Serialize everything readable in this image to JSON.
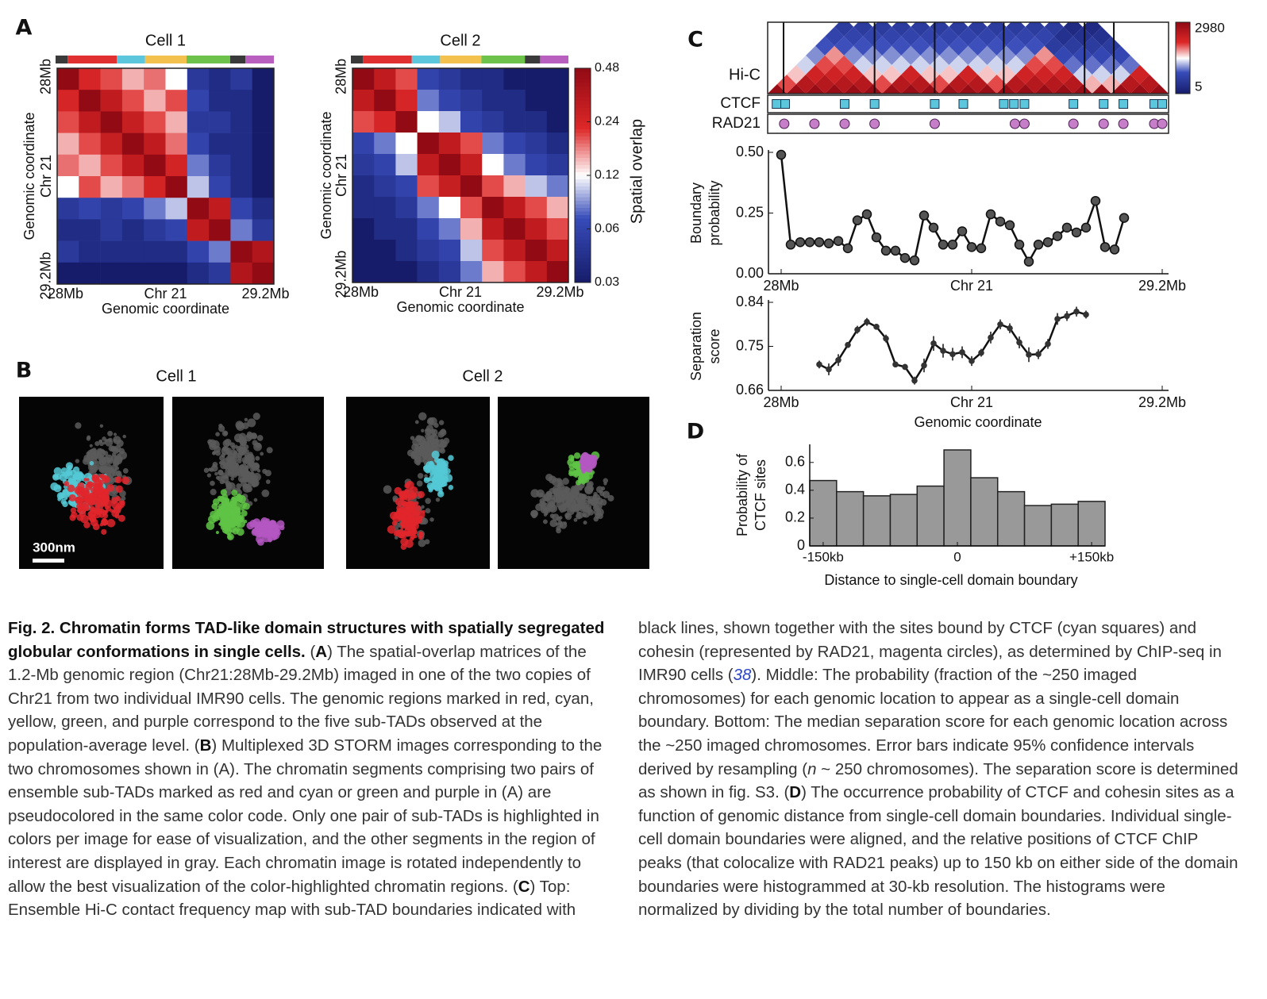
{
  "panel_labels": [
    "A",
    "B",
    "C",
    "D"
  ],
  "images": {
    "titles": [
      "Cell 1",
      "Cell 2"
    ],
    "scale_bar": "300nm"
  },
  "chart_data": [
    {
      "type": "heatmap",
      "title": "Cell 1",
      "xlabel": "Genomic coordinate",
      "ylabel": "Genomic coordinate",
      "xlim": [
        27.95,
        29.25
      ],
      "ylim": [
        27.95,
        29.25
      ],
      "xticks": [
        {
          "value": 28,
          "label": "28Mb"
        },
        {
          "value": 28.6,
          "label": "Chr 21"
        },
        {
          "value": 29.2,
          "label": "29.2Mb"
        }
      ],
      "yticks": [
        {
          "value": 28,
          "label": "28Mb"
        },
        {
          "value": 28.6,
          "label": "Chr 21"
        },
        {
          "value": 29.2,
          "label": "29.2Mb"
        }
      ],
      "values": [
        [
          0.48,
          0.24,
          0.2,
          0.15,
          0.18,
          0.12,
          0.05,
          0.04,
          0.05,
          0.03
        ],
        [
          0.24,
          0.48,
          0.3,
          0.2,
          0.15,
          0.2,
          0.06,
          0.04,
          0.04,
          0.03
        ],
        [
          0.2,
          0.3,
          0.48,
          0.28,
          0.2,
          0.15,
          0.05,
          0.05,
          0.04,
          0.03
        ],
        [
          0.15,
          0.2,
          0.28,
          0.48,
          0.3,
          0.18,
          0.06,
          0.04,
          0.04,
          0.03
        ],
        [
          0.18,
          0.15,
          0.2,
          0.3,
          0.48,
          0.25,
          0.08,
          0.05,
          0.04,
          0.03
        ],
        [
          0.12,
          0.2,
          0.15,
          0.18,
          0.25,
          0.48,
          0.1,
          0.06,
          0.04,
          0.03
        ],
        [
          0.05,
          0.06,
          0.05,
          0.06,
          0.08,
          0.1,
          0.48,
          0.3,
          0.06,
          0.04
        ],
        [
          0.04,
          0.04,
          0.05,
          0.04,
          0.05,
          0.06,
          0.3,
          0.48,
          0.08,
          0.05
        ],
        [
          0.05,
          0.04,
          0.04,
          0.04,
          0.04,
          0.04,
          0.06,
          0.08,
          0.48,
          0.35
        ],
        [
          0.03,
          0.03,
          0.03,
          0.03,
          0.03,
          0.03,
          0.04,
          0.05,
          0.35,
          0.48
        ]
      ],
      "colorbar": {
        "lim": [
          0.03,
          0.48
        ],
        "log": true
      }
    },
    {
      "type": "heatmap",
      "title": "Cell 2",
      "xlabel": "Genomic coordinate",
      "ylabel": "Genomic coordinate",
      "xlim": [
        27.95,
        29.25
      ],
      "ylim": [
        27.95,
        29.25
      ],
      "xticks": [
        {
          "value": 28,
          "label": "28Mb"
        },
        {
          "value": 28.6,
          "label": "Chr 21"
        },
        {
          "value": 29.2,
          "label": "29.2Mb"
        }
      ],
      "yticks": [
        {
          "value": 28,
          "label": "28Mb"
        },
        {
          "value": 28.6,
          "label": "Chr 21"
        },
        {
          "value": 29.2,
          "label": "29.2Mb"
        }
      ],
      "values": [
        [
          0.48,
          0.3,
          0.2,
          0.06,
          0.05,
          0.04,
          0.04,
          0.03,
          0.03,
          0.03
        ],
        [
          0.3,
          0.48,
          0.24,
          0.08,
          0.06,
          0.05,
          0.04,
          0.04,
          0.03,
          0.03
        ],
        [
          0.2,
          0.24,
          0.48,
          0.12,
          0.1,
          0.06,
          0.05,
          0.04,
          0.04,
          0.03
        ],
        [
          0.06,
          0.08,
          0.12,
          0.48,
          0.3,
          0.2,
          0.08,
          0.06,
          0.05,
          0.04
        ],
        [
          0.05,
          0.06,
          0.1,
          0.3,
          0.48,
          0.28,
          0.12,
          0.08,
          0.06,
          0.05
        ],
        [
          0.04,
          0.05,
          0.06,
          0.2,
          0.28,
          0.48,
          0.2,
          0.15,
          0.1,
          0.08
        ],
        [
          0.04,
          0.04,
          0.05,
          0.08,
          0.12,
          0.2,
          0.48,
          0.3,
          0.2,
          0.15
        ],
        [
          0.03,
          0.04,
          0.04,
          0.06,
          0.08,
          0.15,
          0.3,
          0.48,
          0.3,
          0.2
        ],
        [
          0.03,
          0.03,
          0.04,
          0.05,
          0.06,
          0.1,
          0.2,
          0.3,
          0.48,
          0.3
        ],
        [
          0.03,
          0.03,
          0.03,
          0.04,
          0.05,
          0.08,
          0.15,
          0.2,
          0.3,
          0.48
        ]
      ],
      "colorbar": {
        "label": "Spatial overlap",
        "lim": [
          0.03,
          0.48
        ],
        "ticks": [
          0.48,
          0.24,
          0.12,
          0.06,
          0.03
        ],
        "log": true
      }
    },
    {
      "type": "hic",
      "ylabel": "Hi-C",
      "xlim": [
        27.96,
        29.22
      ],
      "values": [
        [
          2500,
          400,
          180,
          90,
          55,
          35,
          25,
          18
        ],
        [
          2500,
          1300,
          700,
          400,
          250,
          35,
          25,
          18
        ],
        [
          2500,
          1300,
          700,
          400,
          55,
          35,
          25,
          18
        ],
        [
          2500,
          1300,
          700,
          90,
          55,
          35,
          25,
          18
        ],
        [
          2500,
          1300,
          180,
          90,
          55,
          35,
          25,
          18
        ],
        [
          2500,
          400,
          180,
          90,
          55,
          35,
          25,
          18
        ],
        [
          2500,
          1300,
          700,
          90,
          55,
          35,
          25,
          18
        ],
        [
          2500,
          1300,
          180,
          90,
          55,
          35,
          25,
          18
        ],
        [
          2500,
          400,
          180,
          90,
          55,
          35,
          25,
          18
        ],
        [
          2500,
          1300,
          700,
          90,
          55,
          35,
          25,
          18
        ],
        [
          2500,
          1300,
          180,
          90,
          55,
          35,
          25,
          18
        ],
        [
          2500,
          400,
          180,
          90,
          55,
          35,
          25,
          18
        ],
        [
          2500,
          1300,
          700,
          400,
          250,
          18,
          12,
          9
        ],
        [
          2500,
          1300,
          700,
          400,
          28,
          18,
          12,
          9
        ],
        [
          2500,
          1300,
          700,
          45,
          28,
          18,
          12
        ],
        [
          2500,
          1300,
          90,
          45,
          28,
          18
        ],
        [
          2500,
          200,
          90,
          45,
          28
        ],
        [
          2500,
          200,
          90,
          45
        ],
        [
          2500,
          1300,
          700
        ],
        [
          2500,
          1300
        ],
        [
          2500
        ]
      ],
      "boundaries": [
        28.01,
        28.296,
        28.485,
        28.702,
        28.956,
        29.048
      ],
      "colorbar": {
        "lim": [
          5,
          2980
        ],
        "ticks": [
          2980,
          5
        ],
        "log": true
      },
      "tracks": [
        {
          "name": "CTCF",
          "color": "#5cc6dd",
          "marker": "square",
          "x": [
            27.988,
            28.015,
            28.202,
            28.296,
            28.485,
            28.575,
            28.702,
            28.734,
            28.767,
            28.921,
            29.016,
            29.078,
            29.175,
            29.2
          ]
        },
        {
          "name": "RAD21",
          "color": "#c77ec9",
          "marker": "circle",
          "x": [
            28.012,
            28.107,
            28.202,
            28.296,
            28.485,
            28.737,
            28.767,
            28.921,
            29.016,
            29.078,
            29.175,
            29.2
          ]
        }
      ]
    },
    {
      "type": "line",
      "ylabel": [
        "Boundary",
        "probability"
      ],
      "xlim": [
        27.96,
        29.22
      ],
      "ylim": [
        0,
        0.5
      ],
      "xticks": [
        {
          "value": 28,
          "label": "28Mb"
        },
        {
          "value": 28.6,
          "label": "Chr 21"
        },
        {
          "value": 29.2,
          "label": "29.2Mb"
        }
      ],
      "yticks": [
        {
          "value": 0,
          "label": "0.00"
        },
        {
          "value": 0.25,
          "label": "0.25"
        },
        {
          "value": 0.5,
          "label": "0.50"
        }
      ],
      "x": [
        28,
        28.03,
        28.06,
        28.09,
        28.12,
        28.15,
        28.18,
        28.21,
        28.24,
        28.27,
        28.3,
        28.33,
        28.36,
        28.39,
        28.42,
        28.45,
        28.48,
        28.51,
        28.54,
        28.57,
        28.6,
        28.63,
        28.66,
        28.69,
        28.72,
        28.75,
        28.78,
        28.81,
        28.84,
        28.87,
        28.9,
        28.93,
        28.96,
        28.99,
        29.02,
        29.05,
        29.08
      ],
      "values": [
        0.49,
        0.12,
        0.13,
        0.13,
        0.13,
        0.125,
        0.135,
        0.105,
        0.22,
        0.245,
        0.15,
        0.095,
        0.095,
        0.065,
        0.055,
        0.24,
        0.19,
        0.12,
        0.12,
        0.175,
        0.11,
        0.105,
        0.245,
        0.215,
        0.2,
        0.12,
        0.05,
        0.12,
        0.13,
        0.155,
        0.19,
        0.17,
        0.19,
        0.3,
        0.11,
        0.1,
        0.23
      ]
    },
    {
      "type": "errorbar",
      "ylabel": [
        "Separation",
        "score"
      ],
      "xlabel": "Genomic coordinate",
      "xlim": [
        27.96,
        29.22
      ],
      "ylim": [
        0.66,
        0.84
      ],
      "xticks": [
        {
          "value": 28,
          "label": "28Mb"
        },
        {
          "value": 28.6,
          "label": "Chr 21"
        },
        {
          "value": 29.2,
          "label": "29.2Mb"
        }
      ],
      "yticks": [
        0.84,
        0.75,
        0.66
      ],
      "x": [
        28.12,
        28.15,
        28.18,
        28.21,
        28.24,
        28.27,
        28.3,
        28.33,
        28.36,
        28.39,
        28.42,
        28.45,
        28.48,
        28.51,
        28.54,
        28.57,
        28.6,
        28.63,
        28.66,
        28.69,
        28.72,
        28.75,
        28.78,
        28.81,
        28.84,
        28.87,
        28.9,
        28.93,
        28.96
      ],
      "values": [
        0.713,
        0.703,
        0.722,
        0.753,
        0.784,
        0.8,
        0.79,
        0.766,
        0.713,
        0.708,
        0.68,
        0.711,
        0.756,
        0.741,
        0.734,
        0.738,
        0.72,
        0.737,
        0.768,
        0.795,
        0.787,
        0.758,
        0.733,
        0.734,
        0.755,
        0.806,
        0.812,
        0.821,
        0.815
      ],
      "errors": [
        0.008,
        0.012,
        0.012,
        0.006,
        0.008,
        0.008,
        0.006,
        0.008,
        0.006,
        0.006,
        0.008,
        0.014,
        0.015,
        0.014,
        0.013,
        0.012,
        0.01,
        0.008,
        0.012,
        0.01,
        0.01,
        0.012,
        0.015,
        0.01,
        0.01,
        0.012,
        0.01,
        0.01,
        0.008
      ]
    },
    {
      "type": "histogram",
      "ylabel": [
        "Probability of",
        "CTCF sites"
      ],
      "xlabel": "Distance to single-cell domain boundary",
      "color": "#999999",
      "xlim": [
        -165,
        165
      ],
      "ylim": [
        0,
        0.73
      ],
      "xticks": [
        {
          "value": -150,
          "label": "-150kb"
        },
        0,
        {
          "value": 150,
          "label": "+150kb"
        }
      ],
      "yticks": [
        0,
        0.2,
        0.4,
        0.6
      ],
      "bins": [
        -165,
        -135,
        -105,
        -75,
        -45,
        -15,
        15,
        45,
        75,
        105,
        135,
        165
      ],
      "values": [
        0.47,
        0.39,
        0.36,
        0.37,
        0.43,
        0.69,
        0.49,
        0.39,
        0.29,
        0.3,
        0.32
      ]
    }
  ],
  "caption": [
    "Fig. 2. Chromatin forms TAD-like domain structures with spatially segregated globular conformations in single cells.",
    " (",
    "A",
    ") The spatial-overlap matrices of the 1.2-Mb genomic region (Chr21:28Mb-29.2Mb) imaged in one of the two copies of Chr21 from two individual IMR90 cells. The genomic regions marked in red, cyan, yellow, green, and purple correspond to the five sub-TADs observed at the population-average level. (",
    "B",
    ") Multiplexed 3D STORM images corresponding to the two chromosomes shown in (A). The chromatin segments comprising two pairs of ensemble sub-TADs marked as red and cyan or green and purple in (A) are pseudocolored in the same color code. Only one pair of sub-TADs is highlighted in colors per image for ease of visualization, and the other segments in the region of interest are displayed in gray. Each chromatin image is rotated independently to allow the best visualization of the color-highlighted chromatin regions. (",
    "C",
    ") Top: Ensemble Hi-C contact frequency map with sub-TAD boundaries indicated with black lines, shown together with the sites bound by CTCF (cyan squares) and cohesin (represented by RAD21, magenta circles), as determined by ChIP-seq in IMR90 cells (",
    "38",
    "). Middle: The probability (fraction of the ~250 imaged chromosomes) for each genomic location to appear as a single-cell domain boundary. Bottom: The median separation score for each genomic location across the ~250 imaged chromosomes. Error bars indicate 95% confidence intervals derived by resampling (",
    "n",
    " ~ 250 chromosomes). The separation score is determined as shown in fig. S3. (",
    "D",
    ") The occurrence probability of CTCF and cohesin sites as a function of genomic distance from single-cell domain boundaries. Individual single-cell domain boundaries were aligned, and the relative positions of CTCF ChIP peaks (that colocalize with RAD21 peaks) up to 150 kb on either side of the domain boundaries were histogrammed at 30-kb resolution. The histograms were normalized by dividing by the total number of boundaries."
  ]
}
